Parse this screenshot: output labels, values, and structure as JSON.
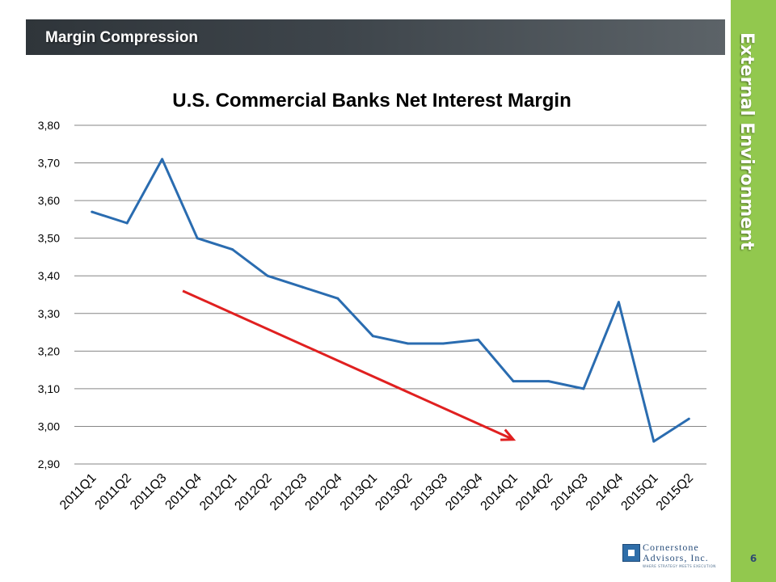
{
  "slide": {
    "header_title": "Margin Compression",
    "side_label": "External Environment",
    "page_number": "6"
  },
  "logo": {
    "name_line1": "Cornerstone",
    "name_line2": "Advisors, Inc.",
    "tagline": "WHERE STRATEGY MEETS EXECUTION"
  },
  "colors": {
    "line": "#2a6cb0",
    "trend_arrow": "#e02020",
    "grid": "#868686",
    "side_strip": "#92c84e",
    "header_bar": "#3e454b"
  },
  "chart_data": {
    "type": "line",
    "title": "U.S. Commercial Banks Net Interest Margin",
    "xlabel": "",
    "ylabel": "",
    "categories": [
      "2011Q1",
      "2011Q2",
      "2011Q3",
      "2011Q4",
      "2012Q1",
      "2012Q2",
      "2012Q3",
      "2012Q4",
      "2013Q1",
      "2013Q2",
      "2013Q3",
      "2013Q4",
      "2014Q1",
      "2014Q2",
      "2014Q3",
      "2014Q4",
      "2015Q1",
      "2015Q2"
    ],
    "series": [
      {
        "values": [
          3.57,
          3.54,
          3.71,
          3.5,
          3.47,
          3.4,
          3.37,
          3.34,
          3.24,
          3.22,
          3.22,
          3.23,
          3.12,
          3.12,
          3.1,
          3.33,
          2.96,
          3.02
        ]
      }
    ],
    "ylim": [
      2.9,
      3.8
    ],
    "yticks": [
      2.9,
      3.0,
      3.1,
      3.2,
      3.3,
      3.4,
      3.5,
      3.6,
      3.7,
      3.8
    ],
    "ytick_labels": [
      "2,90",
      "3,00",
      "3,10",
      "3,20",
      "3,30",
      "3,40",
      "3,50",
      "3,60",
      "3,70",
      "3,80"
    ],
    "grid": true,
    "legend": "none",
    "trend_arrow": {
      "from": {
        "x": "2011Q4",
        "y": 3.36
      },
      "to": {
        "x": "2014Q1",
        "y": 2.965
      }
    }
  }
}
